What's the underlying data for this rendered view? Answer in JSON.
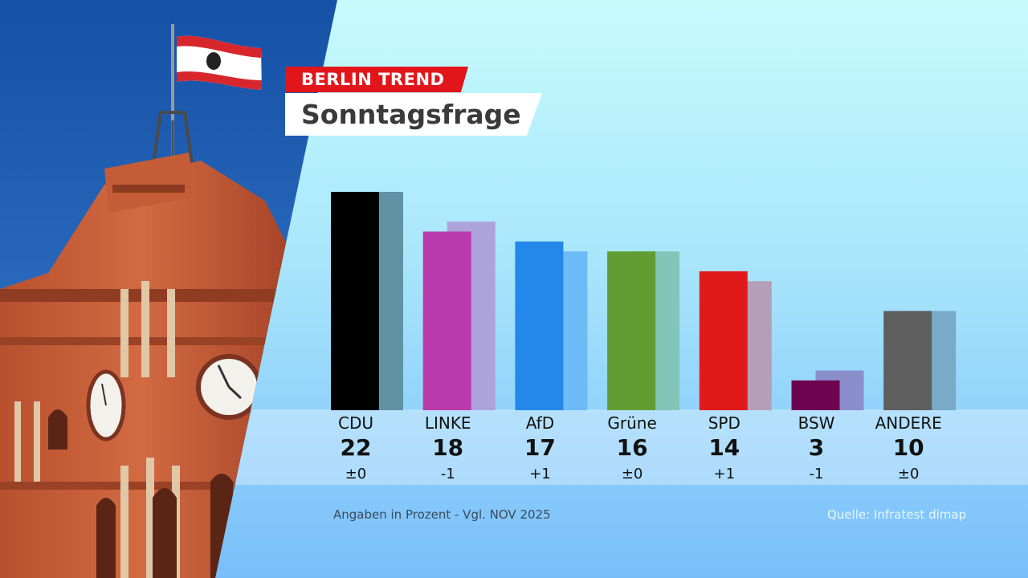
{
  "header": {
    "kicker": "BERLIN TREND",
    "title": "Sonntagsfrage"
  },
  "chart_data": {
    "type": "bar",
    "categories": [
      "CDU",
      "LINKE",
      "AfD",
      "Grüne",
      "SPD",
      "BSW",
      "ANDERE"
    ],
    "series": [
      {
        "values": [
          22,
          18,
          17,
          16,
          14,
          3,
          10
        ],
        "colors": [
          "#000000",
          "#bb3aab",
          "#2487ea",
          "#639c33",
          "#e2191b",
          "#6e0450",
          "#5e5e5e"
        ]
      },
      {
        "values": [
          22,
          19,
          16,
          16,
          13,
          4,
          10
        ],
        "colors": [
          "#5f93a4",
          "#aea2dd",
          "#6cbbf7",
          "#83c5b9",
          "#b59eb8",
          "#8a8fcc",
          "#79aac8"
        ]
      }
    ],
    "value_labels": [
      "22",
      "18",
      "17",
      "16",
      "14",
      "3",
      "10"
    ],
    "change_labels": [
      "±0",
      "-1",
      "+1",
      "±0",
      "+1",
      "-1",
      "±0"
    ],
    "ylim": [
      0,
      25
    ]
  },
  "footer": {
    "note": "Angaben in Prozent - Vgl. NOV 2025",
    "source": "Quelle: Infratest dimap"
  }
}
